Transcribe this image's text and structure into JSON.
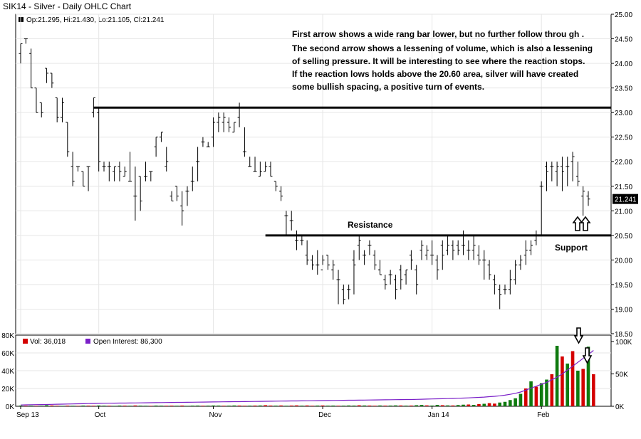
{
  "chart_data": {
    "type": "ohlc",
    "title": "SIK14 - Silver - Daily OHLC Chart",
    "info_line": {
      "marker_color": "#000000",
      "text": "Op:21.295, Hi:21.430, Lo:21.105, Cl:21.241"
    },
    "price_axis": {
      "min": 18.5,
      "max": 25.0,
      "ticks": [
        "18.50",
        "19.00",
        "19.50",
        "20.00",
        "20.50",
        "21.00",
        "21.50",
        "22.00",
        "22.50",
        "23.00",
        "23.50",
        "24.00",
        "24.50",
        "25.00"
      ],
      "last_price_label": "21.241",
      "last_price": 21.241
    },
    "x_axis": {
      "ticks": [
        {
          "label": "Sep 13",
          "bar": 0
        },
        {
          "label": "Oct",
          "bar": 15
        },
        {
          "label": "Nov",
          "bar": 37
        },
        {
          "label": "Dec",
          "bar": 58
        },
        {
          "label": "Jan 14",
          "bar": 79
        },
        {
          "label": "Feb",
          "bar": 100
        }
      ]
    },
    "annotations": {
      "text_lines": [
        "First arrow shows a wide rang bar lower, but no further follow throu gh .",
        "The second arrow shows a lessening of volume, which is also a lessening",
        "of selling pressure.  It will be interesting to see where the reaction stops.",
        "If the reaction lows holds above the 20.60 area, silver will have created",
        "some bullish spacing, a positive turn of events."
      ],
      "resistance_label": "Resistance",
      "support_label": "Support",
      "upper_line_price": 23.1,
      "lower_line_price": 20.5,
      "upper_line_start_bar": 14,
      "lower_line_start_bar": 47
    },
    "bars": [
      [
        24.2,
        24.4,
        24.0,
        24.4
      ],
      [
        24.5,
        24.5,
        24.4,
        24.5
      ],
      [
        24.2,
        24.3,
        23.5,
        23.5
      ],
      [
        23.5,
        23.5,
        23.0,
        23.0
      ],
      [
        23.2,
        23.2,
        22.9,
        23.0
      ],
      [
        23.9,
        23.9,
        23.6,
        23.8
      ],
      [
        23.8,
        23.8,
        23.5,
        23.6
      ],
      [
        23.3,
        23.3,
        22.8,
        22.9
      ],
      [
        22.9,
        23.3,
        22.8,
        23.2
      ],
      [
        22.8,
        22.8,
        22.1,
        22.2
      ],
      [
        21.9,
        22.2,
        21.5,
        21.6
      ],
      [
        21.9,
        21.9,
        21.8,
        21.9
      ],
      [
        21.8,
        21.8,
        21.5,
        21.5
      ],
      [
        21.9,
        21.9,
        21.4,
        21.9
      ],
      [
        23.0,
        23.3,
        22.9,
        23.3
      ],
      [
        23.0,
        23.1,
        21.8,
        22.0
      ],
      [
        21.9,
        22.0,
        21.8,
        21.9
      ],
      [
        21.9,
        22.0,
        21.6,
        21.9
      ],
      [
        21.8,
        21.9,
        21.6,
        21.9
      ],
      [
        21.9,
        22.0,
        21.6,
        21.8
      ],
      [
        21.7,
        21.9,
        21.7,
        21.8
      ],
      [
        21.6,
        22.2,
        21.6,
        21.6
      ],
      [
        21.3,
        21.9,
        20.8,
        21.3
      ],
      [
        21.7,
        21.7,
        21.0,
        21.2
      ],
      [
        21.7,
        22.0,
        21.6,
        21.7
      ],
      [
        21.8,
        21.8,
        21.6,
        21.8
      ],
      [
        22.3,
        22.5,
        22.1,
        22.5
      ],
      [
        22.5,
        22.6,
        22.4,
        22.6
      ],
      [
        21.9,
        22.3,
        21.8,
        22.0
      ],
      [
        21.3,
        21.4,
        21.2,
        21.2
      ],
      [
        21.5,
        21.5,
        21.2,
        21.3
      ],
      [
        21.1,
        21.4,
        20.7,
        21.0
      ],
      [
        21.4,
        21.5,
        21.1,
        21.4
      ],
      [
        21.6,
        21.9,
        21.4,
        21.6
      ],
      [
        22.0,
        22.3,
        21.6,
        22.0
      ],
      [
        22.4,
        22.5,
        22.3,
        22.4
      ],
      [
        22.3,
        22.4,
        22.3,
        22.3
      ],
      [
        22.5,
        22.9,
        22.3,
        22.8
      ],
      [
        22.8,
        23.0,
        22.6,
        22.9
      ],
      [
        22.8,
        23.0,
        22.6,
        22.9
      ],
      [
        22.8,
        22.9,
        22.6,
        22.7
      ],
      [
        22.6,
        22.8,
        22.6,
        22.8
      ],
      [
        22.9,
        23.2,
        22.7,
        23.1
      ],
      [
        22.2,
        22.7,
        22.1,
        22.2
      ],
      [
        21.9,
        22.1,
        21.9,
        21.9
      ],
      [
        21.8,
        22.1,
        21.8,
        21.8
      ],
      [
        21.7,
        22.0,
        21.7,
        21.8
      ],
      [
        21.8,
        22.0,
        21.8,
        21.9
      ],
      [
        21.9,
        22.0,
        21.7,
        21.7
      ],
      [
        21.6,
        21.6,
        21.4,
        21.5
      ],
      [
        21.4,
        21.5,
        21.2,
        21.3
      ],
      [
        20.9,
        21.0,
        20.5,
        20.9
      ],
      [
        20.8,
        21.0,
        20.6,
        20.8
      ],
      [
        20.4,
        20.6,
        20.2,
        20.4
      ],
      [
        20.4,
        20.5,
        20.3,
        20.4
      ],
      [
        20.1,
        20.4,
        19.9,
        20.0
      ],
      [
        20.0,
        20.1,
        19.8,
        19.9
      ],
      [
        19.9,
        20.2,
        19.7,
        19.9
      ],
      [
        19.8,
        20.1,
        19.9,
        20.0
      ],
      [
        20.1,
        20.1,
        19.8,
        19.9
      ],
      [
        19.8,
        20.0,
        19.6,
        19.9
      ],
      [
        19.6,
        19.8,
        19.1,
        19.6
      ],
      [
        19.4,
        19.5,
        19.1,
        19.2
      ],
      [
        19.4,
        19.5,
        19.2,
        19.4
      ],
      [
        20.0,
        20.2,
        19.3,
        19.9
      ],
      [
        20.3,
        20.5,
        20.0,
        20.4
      ],
      [
        20.1,
        20.2,
        19.9,
        20.1
      ],
      [
        20.3,
        20.4,
        20.1,
        20.3
      ],
      [
        20.1,
        20.2,
        19.8,
        19.9
      ],
      [
        19.8,
        20.0,
        19.7,
        19.7
      ],
      [
        19.6,
        19.7,
        19.4,
        19.5
      ],
      [
        19.7,
        19.8,
        19.5,
        19.7
      ],
      [
        19.6,
        19.7,
        19.2,
        19.4
      ],
      [
        19.8,
        19.9,
        19.4,
        19.6
      ],
      [
        19.7,
        19.8,
        19.5,
        19.8
      ],
      [
        20.1,
        20.2,
        19.8,
        20.0
      ],
      [
        19.8,
        19.9,
        19.3,
        19.5
      ],
      [
        20.2,
        20.4,
        20.0,
        20.3
      ],
      [
        20.1,
        20.3,
        20.0,
        20.2
      ],
      [
        20.1,
        20.4,
        19.9,
        20.1
      ],
      [
        20.0,
        20.1,
        19.6,
        19.8
      ],
      [
        20.3,
        20.4,
        19.8,
        20.1
      ],
      [
        20.2,
        20.5,
        20.1,
        20.3
      ],
      [
        20.3,
        20.4,
        20.0,
        20.2
      ],
      [
        20.3,
        20.4,
        20.1,
        20.2
      ],
      [
        20.3,
        20.6,
        20.1,
        20.3
      ],
      [
        20.2,
        20.4,
        20.0,
        20.2
      ],
      [
        20.2,
        20.5,
        20.0,
        20.3
      ],
      [
        20.1,
        20.3,
        19.9,
        20.0
      ],
      [
        20.0,
        20.2,
        19.6,
        20.0
      ],
      [
        19.9,
        20.0,
        19.6,
        19.7
      ],
      [
        19.6,
        19.7,
        19.3,
        19.5
      ],
      [
        19.4,
        19.5,
        19.0,
        19.3
      ],
      [
        19.4,
        19.5,
        19.3,
        19.4
      ],
      [
        19.4,
        19.8,
        19.3,
        19.6
      ],
      [
        19.6,
        20.0,
        19.5,
        19.9
      ],
      [
        19.9,
        20.1,
        19.8,
        20.0
      ],
      [
        20.1,
        20.4,
        19.9,
        20.2
      ],
      [
        20.2,
        20.4,
        20.1,
        20.3
      ],
      [
        20.4,
        20.6,
        20.3,
        20.5
      ],
      [
        21.5,
        21.6,
        20.5,
        21.5
      ],
      [
        21.9,
        22.0,
        21.4,
        21.8
      ],
      [
        21.9,
        22.0,
        21.6,
        21.9
      ],
      [
        21.8,
        22.0,
        21.5,
        21.9
      ],
      [
        21.9,
        22.1,
        21.4,
        21.8
      ],
      [
        21.9,
        22.1,
        21.5,
        21.9
      ],
      [
        22.0,
        22.2,
        21.6,
        22.1
      ],
      [
        21.7,
        22.0,
        21.5,
        21.6
      ],
      [
        21.3,
        21.5,
        20.9,
        21.4
      ],
      [
        21.3,
        21.4,
        21.1,
        21.24
      ]
    ],
    "volume_panel": {
      "legend": [
        {
          "label": "Vol: 36,018",
          "color": "#d40000"
        },
        {
          "label": "Open Interest: 86,300",
          "color": "#7a1fc8"
        }
      ],
      "left_axis": {
        "max": 80000,
        "ticks": [
          {
            "value": 0,
            "label": "0K"
          },
          {
            "value": 20000,
            "label": "20K"
          },
          {
            "value": 40000,
            "label": "40K"
          },
          {
            "value": 60000,
            "label": "60K"
          },
          {
            "value": 80000,
            "label": "80K"
          }
        ]
      },
      "right_axis": {
        "max": 110000,
        "ticks": [
          {
            "value": 0,
            "label": "0K"
          },
          {
            "value": 50000,
            "label": "50K"
          },
          {
            "value": 100000,
            "label": "100K"
          }
        ]
      },
      "volume": [
        800,
        600,
        700,
        500,
        600,
        1200,
        900,
        600,
        500,
        700,
        600,
        500,
        800,
        700,
        600,
        900,
        700,
        600,
        500,
        800,
        700,
        600,
        900,
        700,
        600,
        500,
        800,
        700,
        600,
        700,
        600,
        800,
        500,
        700,
        800,
        600,
        700,
        900,
        800,
        600,
        700,
        900,
        800,
        600,
        700,
        800,
        900,
        1200,
        800,
        700,
        900,
        600,
        800,
        1000,
        700,
        900,
        600,
        800,
        900,
        700,
        800,
        600,
        700,
        900,
        800,
        1100,
        900,
        800,
        600,
        900,
        700,
        800,
        1000,
        900,
        700,
        800,
        1200,
        1500,
        1000,
        800,
        1600,
        1200,
        1000,
        900,
        1400,
        1800,
        2000,
        1600,
        2500,
        2800,
        3500,
        3000,
        4200,
        5000,
        7000,
        9000,
        14000,
        20000,
        28000,
        22000,
        26000,
        30000,
        36000,
        68000,
        56000,
        48000,
        62000,
        40000,
        42000,
        67000,
        36018
      ],
      "volume_up": [
        1,
        0,
        1,
        0,
        1,
        1,
        0,
        0,
        1,
        0,
        1,
        0,
        1,
        0,
        0,
        1,
        1,
        0,
        1,
        1,
        0,
        1,
        0,
        1,
        1,
        0,
        1,
        1,
        0,
        0,
        1,
        0,
        1,
        1,
        1,
        0,
        1,
        1,
        1,
        0,
        1,
        1,
        0,
        0,
        1,
        0,
        1,
        0,
        0,
        1,
        0,
        1,
        0,
        0,
        1,
        0,
        0,
        1,
        0,
        1,
        1,
        0,
        1,
        1,
        1,
        0,
        1,
        0,
        0,
        1,
        0,
        1,
        1,
        0,
        1,
        0,
        1,
        1,
        0,
        1,
        1,
        0,
        1,
        0,
        1,
        1,
        0,
        1,
        0,
        1,
        0,
        0,
        1,
        1,
        1,
        1,
        1,
        0,
        1,
        0,
        1,
        1,
        0,
        1,
        0,
        1,
        0,
        1,
        0,
        1,
        0
      ],
      "open_interest": [
        2000,
        2200,
        2400,
        2500,
        2600,
        2800,
        3000,
        3200,
        3300,
        3500,
        3600,
        3800,
        4000,
        4200,
        4300,
        4500,
        4600,
        4700,
        4800,
        4900,
        5000,
        5100,
        5200,
        5300,
        5400,
        5500,
        5600,
        5700,
        5800,
        5900,
        6000,
        6100,
        6200,
        6300,
        6400,
        6500,
        6600,
        6700,
        6800,
        6900,
        7000,
        7100,
        7200,
        7300,
        7400,
        7500,
        7600,
        7700,
        7800,
        7900,
        8000,
        8100,
        8200,
        8300,
        8400,
        8500,
        8600,
        8700,
        8800,
        8900,
        9000,
        9100,
        9200,
        9300,
        9400,
        9500,
        9600,
        9700,
        9800,
        9900,
        10000,
        10100,
        10200,
        10300,
        10400,
        10500,
        10700,
        10900,
        11100,
        11300,
        11500,
        11700,
        11900,
        12100,
        12400,
        12700,
        13000,
        13400,
        13800,
        14200,
        14800,
        15400,
        16200,
        17200,
        18500,
        20000,
        22000,
        25000,
        28000,
        31000,
        34000,
        37000,
        41000,
        45000,
        50000,
        56000,
        62000,
        68000,
        74000,
        80000,
        86300
      ]
    }
  }
}
